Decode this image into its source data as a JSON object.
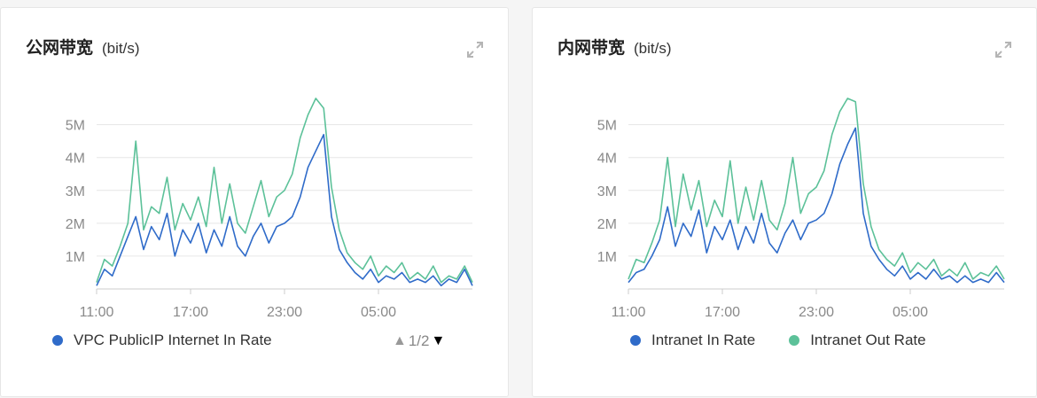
{
  "colors": {
    "in": "#2f6bc9",
    "out": "#5cc199",
    "grid": "#e6e6e6",
    "axis": "#8a8a8a"
  },
  "icons": {
    "expand": "expand-icon"
  },
  "chart_data": [
    {
      "type": "line",
      "title": "公网带宽",
      "unit": "(bit/s)",
      "y_ticks": [
        "1M",
        "2M",
        "3M",
        "4M",
        "5M"
      ],
      "ylim": [
        0,
        5.8
      ],
      "x_ticks": [
        "11:00",
        "17:00",
        "23:00",
        "05:00"
      ],
      "x_ticks_pos": [
        0,
        6,
        12,
        18
      ],
      "xlim": [
        0,
        24
      ],
      "legend_placement": "bottom-left",
      "legend": [
        "VPC PublicIP Internet In Rate"
      ],
      "pager": {
        "up": "▲",
        "text": "1/2",
        "down": "▼"
      },
      "series": [
        {
          "name": "VPC PublicIP Internet In Rate",
          "color": "#2f6bc9",
          "x": [
            0,
            0.5,
            1,
            1.5,
            2,
            2.5,
            3,
            3.5,
            4,
            4.5,
            5,
            5.5,
            6,
            6.5,
            7,
            7.5,
            8,
            8.5,
            9,
            9.5,
            10,
            10.5,
            11,
            11.5,
            12,
            12.5,
            13,
            13.5,
            14,
            14.5,
            15,
            15.5,
            16,
            16.5,
            17,
            17.5,
            18,
            18.5,
            19,
            19.5,
            20,
            20.5,
            21,
            21.5,
            22,
            22.5,
            23,
            23.5,
            24
          ],
          "y": [
            0.1,
            0.6,
            0.4,
            1.0,
            1.6,
            2.2,
            1.2,
            1.9,
            1.5,
            2.3,
            1.0,
            1.8,
            1.4,
            2.0,
            1.1,
            1.8,
            1.3,
            2.2,
            1.3,
            1.0,
            1.6,
            2.0,
            1.4,
            1.9,
            2.0,
            2.2,
            2.8,
            3.7,
            4.2,
            4.7,
            2.2,
            1.2,
            0.8,
            0.5,
            0.3,
            0.6,
            0.2,
            0.4,
            0.3,
            0.5,
            0.2,
            0.3,
            0.2,
            0.4,
            0.1,
            0.3,
            0.2,
            0.6,
            0.1
          ]
        },
        {
          "name": "",
          "color": "#5cc199",
          "x": [
            0,
            0.5,
            1,
            1.5,
            2,
            2.5,
            3,
            3.5,
            4,
            4.5,
            5,
            5.5,
            6,
            6.5,
            7,
            7.5,
            8,
            8.5,
            9,
            9.5,
            10,
            10.5,
            11,
            11.5,
            12,
            12.5,
            13,
            13.5,
            14,
            14.5,
            15,
            15.5,
            16,
            16.5,
            17,
            17.5,
            18,
            18.5,
            19,
            19.5,
            20,
            20.5,
            21,
            21.5,
            22,
            22.5,
            23,
            23.5,
            24
          ],
          "y": [
            0.2,
            0.9,
            0.7,
            1.3,
            2.0,
            4.5,
            1.8,
            2.5,
            2.3,
            3.4,
            1.8,
            2.6,
            2.1,
            2.8,
            1.9,
            3.7,
            2.0,
            3.2,
            2.0,
            1.7,
            2.5,
            3.3,
            2.2,
            2.8,
            3.0,
            3.5,
            4.6,
            5.3,
            5.8,
            5.5,
            3.1,
            1.8,
            1.1,
            0.8,
            0.6,
            1.0,
            0.4,
            0.7,
            0.5,
            0.8,
            0.3,
            0.5,
            0.3,
            0.7,
            0.2,
            0.4,
            0.3,
            0.7,
            0.2
          ]
        }
      ]
    },
    {
      "type": "line",
      "title": "内网带宽",
      "unit": "(bit/s)",
      "y_ticks": [
        "1M",
        "2M",
        "3M",
        "4M",
        "5M"
      ],
      "ylim": [
        0,
        5.8
      ],
      "x_ticks": [
        "11:00",
        "17:00",
        "23:00",
        "05:00"
      ],
      "x_ticks_pos": [
        0,
        6,
        12,
        18
      ],
      "xlim": [
        0,
        24
      ],
      "legend_placement": "bottom-left",
      "legend": [
        "Intranet In Rate",
        "Intranet Out Rate"
      ],
      "series": [
        {
          "name": "Intranet In Rate",
          "color": "#2f6bc9",
          "x": [
            0,
            0.5,
            1,
            1.5,
            2,
            2.5,
            3,
            3.5,
            4,
            4.5,
            5,
            5.5,
            6,
            6.5,
            7,
            7.5,
            8,
            8.5,
            9,
            9.5,
            10,
            10.5,
            11,
            11.5,
            12,
            12.5,
            13,
            13.5,
            14,
            14.5,
            15,
            15.5,
            16,
            16.5,
            17,
            17.5,
            18,
            18.5,
            19,
            19.5,
            20,
            20.5,
            21,
            21.5,
            22,
            22.5,
            23,
            23.5,
            24
          ],
          "y": [
            0.2,
            0.5,
            0.6,
            1.0,
            1.5,
            2.5,
            1.3,
            2.0,
            1.6,
            2.4,
            1.1,
            1.9,
            1.5,
            2.1,
            1.2,
            1.9,
            1.4,
            2.3,
            1.4,
            1.1,
            1.7,
            2.1,
            1.5,
            2.0,
            2.1,
            2.3,
            2.9,
            3.8,
            4.4,
            4.9,
            2.3,
            1.3,
            0.9,
            0.6,
            0.4,
            0.7,
            0.3,
            0.5,
            0.3,
            0.6,
            0.3,
            0.4,
            0.2,
            0.4,
            0.2,
            0.3,
            0.2,
            0.5,
            0.2
          ]
        },
        {
          "name": "Intranet Out Rate",
          "color": "#5cc199",
          "x": [
            0,
            0.5,
            1,
            1.5,
            2,
            2.5,
            3,
            3.5,
            4,
            4.5,
            5,
            5.5,
            6,
            6.5,
            7,
            7.5,
            8,
            8.5,
            9,
            9.5,
            10,
            10.5,
            11,
            11.5,
            12,
            12.5,
            13,
            13.5,
            14,
            14.5,
            15,
            15.5,
            16,
            16.5,
            17,
            17.5,
            18,
            18.5,
            19,
            19.5,
            20,
            20.5,
            21,
            21.5,
            22,
            22.5,
            23,
            23.5,
            24
          ],
          "y": [
            0.3,
            0.9,
            0.8,
            1.4,
            2.1,
            4.0,
            1.9,
            3.5,
            2.4,
            3.3,
            1.9,
            2.7,
            2.2,
            3.9,
            2.0,
            3.1,
            2.1,
            3.3,
            2.1,
            1.8,
            2.6,
            4.0,
            2.3,
            2.9,
            3.1,
            3.6,
            4.7,
            5.4,
            5.8,
            5.7,
            3.2,
            1.9,
            1.2,
            0.9,
            0.7,
            1.1,
            0.5,
            0.8,
            0.6,
            0.9,
            0.4,
            0.6,
            0.4,
            0.8,
            0.3,
            0.5,
            0.4,
            0.7,
            0.3
          ]
        }
      ]
    }
  ]
}
